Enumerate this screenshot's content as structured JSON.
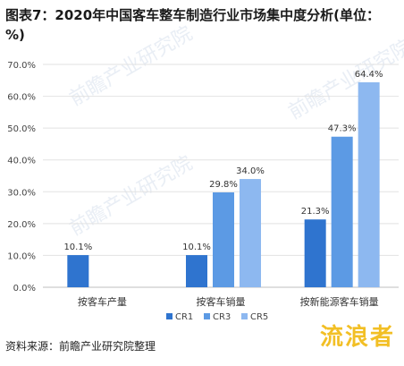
{
  "title": "图表7：2020年中国客车整车制造行业市场集中度分析(单位：%)",
  "footer": {
    "source": "资料来源：前瞻产业研究院整理"
  },
  "watermark": {
    "text": "前瞻产业研究院",
    "corner_text": "流浪者"
  },
  "colors": {
    "CR1": "#2f74cf",
    "CR3": "#5c9ae4",
    "CR5": "#8db8f0",
    "grid": "#e2e2e2",
    "axis": "#bfbfbf"
  },
  "chart_data": {
    "type": "bar",
    "title": "图表7：2020年中国客车整车制造行业市场集中度分析(单位：%)",
    "xlabel": "",
    "ylabel": "",
    "ylim": [
      0,
      70
    ],
    "yticks": [
      0,
      10,
      20,
      30,
      40,
      50,
      60,
      70
    ],
    "ytick_labels": [
      "0.0%",
      "10.0%",
      "20.0%",
      "30.0%",
      "40.0%",
      "50.0%",
      "60.0%",
      "70.0%"
    ],
    "grid": true,
    "legend": "bottom",
    "categories": [
      "按客车产量",
      "按客车销量",
      "按新能源客车销量"
    ],
    "series": [
      {
        "name": "CR1",
        "values": [
          10.1,
          10.1,
          21.3
        ],
        "labels": [
          "10.1%",
          "10.1%",
          "21.3%"
        ]
      },
      {
        "name": "CR3",
        "values": [
          null,
          29.8,
          47.3
        ],
        "labels": [
          null,
          "29.8%",
          "47.3%"
        ]
      },
      {
        "name": "CR5",
        "values": [
          null,
          34.0,
          64.4
        ],
        "labels": [
          null,
          "34.0%",
          "64.4%"
        ]
      }
    ]
  }
}
